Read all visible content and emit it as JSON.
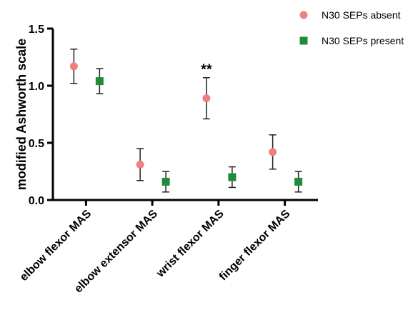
{
  "chart_data": {
    "type": "scatter",
    "title": "",
    "xlabel": "",
    "ylabel": "modified Ashworth scale",
    "ylim": [
      0,
      1.5
    ],
    "yticks": [
      "0.0",
      "0.5",
      "1.0",
      "1.5"
    ],
    "categories": [
      "elbow flexor MAS",
      "elbow extensor MAS",
      "wrist flexor MAS",
      "finger flexor MAS"
    ],
    "grid": false,
    "legend_position": "top-right",
    "series": [
      {
        "name": "N30 SEPs absent",
        "marker": "circle",
        "color": "#f08080",
        "values": [
          1.17,
          0.31,
          0.89,
          0.42
        ],
        "err_low": [
          1.02,
          0.17,
          0.71,
          0.27
        ],
        "err_high": [
          1.32,
          0.45,
          1.07,
          0.57
        ]
      },
      {
        "name": "N30 SEPs present",
        "marker": "square",
        "color": "#1e8c3a",
        "values": [
          1.04,
          0.16,
          0.2,
          0.16
        ],
        "err_low": [
          0.93,
          0.07,
          0.11,
          0.07
        ],
        "err_high": [
          1.15,
          0.25,
          0.29,
          0.25
        ]
      }
    ],
    "annotations": [
      {
        "text": "**",
        "category_index": 2,
        "y": 1.19
      }
    ]
  }
}
